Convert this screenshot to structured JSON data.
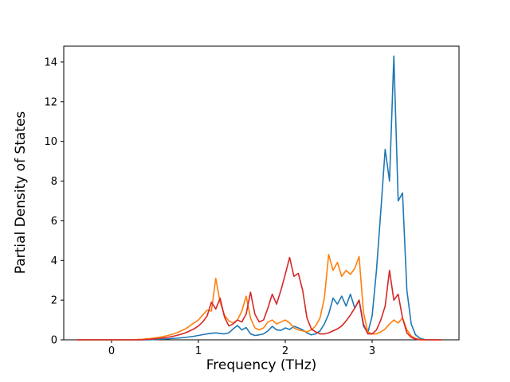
{
  "chart_data": {
    "type": "line",
    "title": "",
    "xlabel": "Frequency (THz)",
    "ylabel": "Partial Density of States",
    "xlim": [
      -0.55,
      4.0
    ],
    "ylim": [
      0,
      14.8
    ],
    "xticks": [
      0,
      1,
      2,
      3
    ],
    "yticks": [
      0,
      2,
      4,
      6,
      8,
      10,
      12,
      14
    ],
    "grid": false,
    "legend": "none",
    "background_color": "#ffffff",
    "axis_color": "#000000",
    "x": [
      -0.4,
      -0.35,
      -0.3,
      -0.25,
      -0.2,
      -0.15,
      -0.1,
      -0.05,
      0,
      0.05,
      0.1,
      0.15,
      0.2,
      0.25,
      0.3,
      0.35,
      0.4,
      0.45,
      0.5,
      0.55,
      0.6,
      0.65,
      0.7,
      0.75,
      0.8,
      0.85,
      0.9,
      0.95,
      1,
      1.05,
      1.1,
      1.15,
      1.2,
      1.25,
      1.3,
      1.35,
      1.4,
      1.45,
      1.5,
      1.55,
      1.6,
      1.65,
      1.7,
      1.75,
      1.8,
      1.85,
      1.9,
      1.95,
      2,
      2.05,
      2.1,
      2.15,
      2.2,
      2.25,
      2.3,
      2.35,
      2.4,
      2.45,
      2.5,
      2.55,
      2.6,
      2.65,
      2.7,
      2.75,
      2.8,
      2.85,
      2.9,
      2.95,
      3,
      3.05,
      3.1,
      3.15,
      3.2,
      3.25,
      3.3,
      3.35,
      3.4,
      3.45,
      3.5,
      3.55,
      3.6,
      3.65,
      3.7,
      3.75,
      3.8
    ],
    "series": [
      {
        "name": "blue",
        "color": "#1f77b4",
        "values": [
          0,
          0,
          0,
          0,
          0,
          0,
          0,
          0,
          0,
          0,
          0,
          0,
          0,
          0,
          0,
          0,
          0,
          0,
          0.02,
          0.03,
          0.04,
          0.05,
          0.07,
          0.08,
          0.1,
          0.12,
          0.15,
          0.18,
          0.22,
          0.26,
          0.3,
          0.33,
          0.35,
          0.32,
          0.3,
          0.35,
          0.55,
          0.72,
          0.5,
          0.62,
          0.3,
          0.22,
          0.25,
          0.3,
          0.45,
          0.68,
          0.5,
          0.48,
          0.6,
          0.52,
          0.68,
          0.6,
          0.5,
          0.35,
          0.25,
          0.3,
          0.45,
          0.8,
          1.3,
          2.1,
          1.8,
          2.2,
          1.7,
          2.3,
          1.6,
          2.0,
          0.7,
          0.35,
          1.2,
          3.5,
          6.5,
          9.6,
          8.0,
          14.3,
          7.0,
          7.4,
          2.5,
          0.8,
          0.25,
          0.08,
          0.02,
          0,
          0,
          0,
          0
        ]
      },
      {
        "name": "orange",
        "color": "#ff7f0e",
        "values": [
          0,
          0,
          0,
          0,
          0,
          0,
          0,
          0,
          0,
          0,
          0,
          0,
          0,
          0,
          0.02,
          0.03,
          0.05,
          0.07,
          0.1,
          0.13,
          0.17,
          0.22,
          0.28,
          0.35,
          0.45,
          0.55,
          0.7,
          0.85,
          1.0,
          1.25,
          1.5,
          1.45,
          3.1,
          1.9,
          1.25,
          0.95,
          0.85,
          1.0,
          1.45,
          2.2,
          1.1,
          0.6,
          0.5,
          0.6,
          0.9,
          1.0,
          0.8,
          0.9,
          1.0,
          0.85,
          0.6,
          0.5,
          0.45,
          0.4,
          0.5,
          0.7,
          1.1,
          2.1,
          4.3,
          3.5,
          3.9,
          3.2,
          3.5,
          3.3,
          3.6,
          4.2,
          1.4,
          0.4,
          0.3,
          0.3,
          0.4,
          0.55,
          0.8,
          1.0,
          0.85,
          1.1,
          0.5,
          0.2,
          0.07,
          0.02,
          0,
          0,
          0,
          0,
          0
        ]
      },
      {
        "name": "red",
        "color": "#d62728",
        "values": [
          0,
          0,
          0,
          0,
          0,
          0,
          0,
          0,
          0,
          0,
          0,
          0,
          0,
          0,
          0,
          0,
          0.02,
          0.03,
          0.05,
          0.07,
          0.1,
          0.13,
          0.17,
          0.22,
          0.28,
          0.35,
          0.45,
          0.55,
          0.7,
          0.9,
          1.2,
          1.9,
          1.55,
          2.1,
          1.15,
          0.7,
          0.8,
          1.0,
          0.9,
          1.3,
          2.4,
          1.3,
          0.9,
          1.0,
          1.6,
          2.3,
          1.8,
          2.5,
          3.3,
          4.15,
          3.2,
          3.35,
          2.5,
          1.1,
          0.55,
          0.4,
          0.3,
          0.3,
          0.35,
          0.45,
          0.55,
          0.7,
          0.95,
          1.25,
          1.6,
          2.0,
          0.8,
          0.3,
          0.3,
          0.5,
          1.0,
          1.7,
          3.5,
          2.0,
          2.3,
          1.1,
          0.35,
          0.12,
          0.04,
          0,
          0,
          0,
          0,
          0,
          0
        ]
      }
    ]
  }
}
